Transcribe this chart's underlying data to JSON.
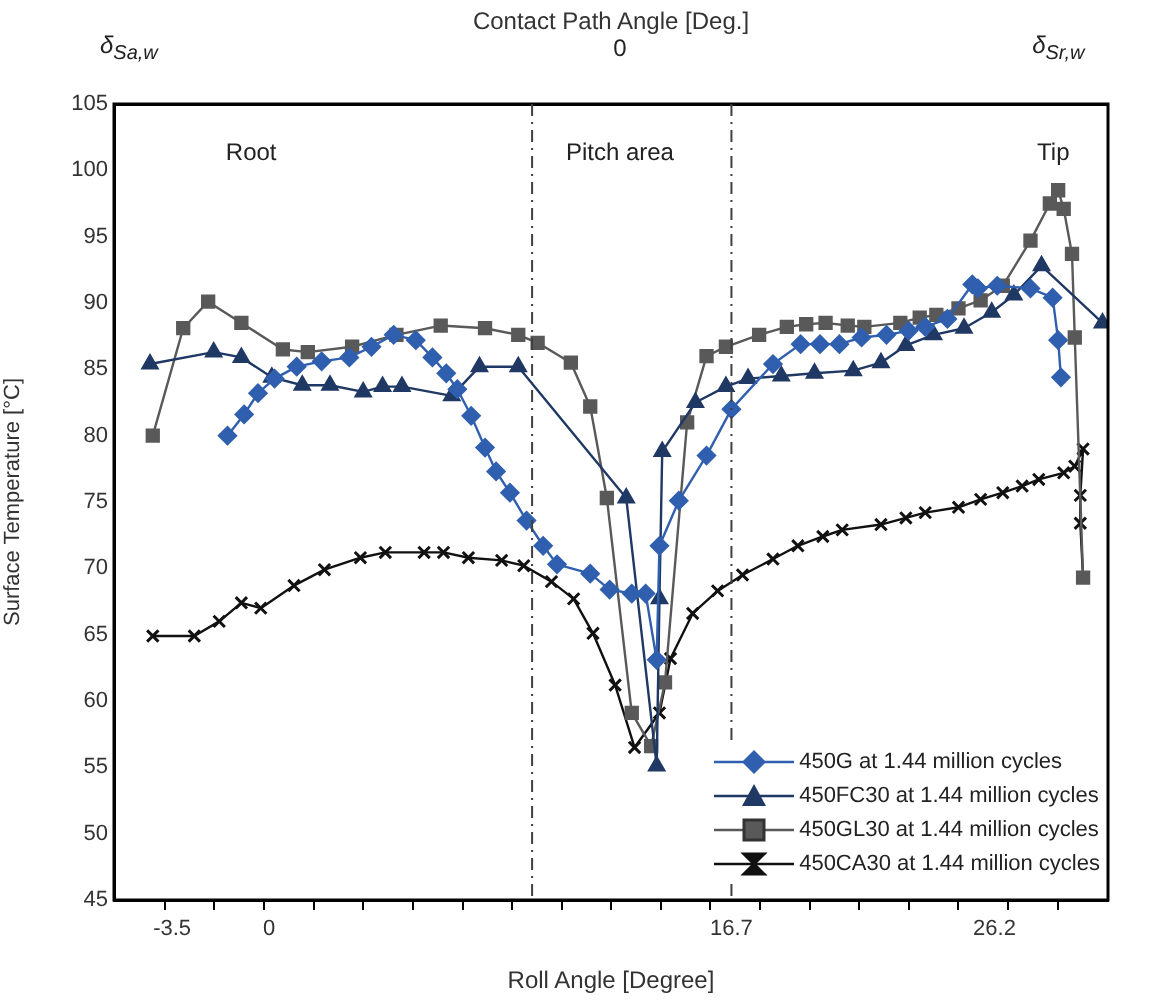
{
  "chart_data": {
    "type": "line",
    "xlabel": "Roll Angle [Degree]",
    "ylabel": "Surface Temperature [°C]",
    "x2label": "Contact Path Angle [Deg.]",
    "xlim": [
      -5.6,
      30.3
    ],
    "ylim": [
      45,
      105
    ],
    "xticks": [
      {
        "value": -3.77,
        "label": null
      },
      -3.5,
      {
        "value": -1.98,
        "label": null
      },
      {
        "value": -0.18,
        "label": null
      },
      0,
      {
        "value": 1.61,
        "label": null
      },
      {
        "value": 3.4,
        "label": null
      },
      {
        "value": 5.19,
        "label": null
      },
      {
        "value": 6.99,
        "label": null
      },
      {
        "value": 8.78,
        "label": null
      },
      {
        "value": 10.57,
        "label": null
      },
      {
        "value": 12.36,
        "label": null
      },
      {
        "value": 14.15,
        "label": null
      },
      {
        "value": 15.94,
        "label": null
      },
      16.7,
      {
        "value": 17.74,
        "label": null
      },
      {
        "value": 19.53,
        "label": null
      },
      {
        "value": 21.32,
        "label": null
      },
      {
        "value": 23.11,
        "label": null
      },
      {
        "value": 24.9,
        "label": null
      },
      26.2,
      {
        "value": 26.7,
        "label": null
      },
      {
        "value": 28.49,
        "label": null
      }
    ],
    "yticks": [
      45,
      50,
      55,
      60,
      65,
      70,
      75,
      80,
      85,
      90,
      95,
      100,
      105
    ],
    "legend": "bottom right",
    "ref_lines": [
      {
        "axis": "x",
        "value": 9.5,
        "color": "#404040",
        "line_style": "dashed"
      },
      {
        "axis": "x",
        "value": 16.7,
        "color": "#404040",
        "line_style": "dashed"
      }
    ],
    "annotations": [
      "Root",
      "Pitch area",
      "Tip",
      "δ$_{Sa,w}$",
      "0",
      "δ$_{Sr,w}$"
    ],
    "series": [
      {
        "name": "450G at 1.44 million cycles",
        "color": "#2f5fae",
        "marker": "diamond",
        "x": [
          -1.5,
          -0.9,
          -0.4,
          0.2,
          1.0,
          1.9,
          2.9,
          3.7,
          4.5,
          5.3,
          5.9,
          6.4,
          6.8,
          7.3,
          7.8,
          8.2,
          8.7,
          9.3,
          9.9,
          10.4,
          11.6,
          12.3,
          13.1,
          13.6,
          14.0,
          14.1,
          14.8,
          15.8,
          16.7,
          18.2,
          19.2,
          19.9,
          20.6,
          21.4,
          22.3,
          23.1,
          23.7,
          24.5,
          25.4,
          25.6,
          26.3,
          27.5,
          28.3,
          28.5,
          28.6
        ],
        "values": [
          80.0,
          81.6,
          83.2,
          84.3,
          85.2,
          85.6,
          85.9,
          86.7,
          87.6,
          87.2,
          85.9,
          84.7,
          83.5,
          81.5,
          79.1,
          77.3,
          75.7,
          73.6,
          71.7,
          70.3,
          69.6,
          68.4,
          68.1,
          68.1,
          63.1,
          71.7,
          75.1,
          78.5,
          82.0,
          85.4,
          86.9,
          86.9,
          86.9,
          87.4,
          87.6,
          87.9,
          88.2,
          88.8,
          91.4,
          91.1,
          91.3,
          91.1,
          90.4,
          87.2,
          84.4
        ]
      },
      {
        "name": "450FC30 at 1.44 million cycles",
        "color": "#1f3864",
        "marker": "triangle",
        "x": [
          -4.3,
          -2.0,
          -1.0,
          0.1,
          1.2,
          2.2,
          3.4,
          4.1,
          4.8,
          6.6,
          7.6,
          9.0,
          12.9,
          14.0,
          14.1,
          14.2,
          15.4,
          16.5,
          17.3,
          18.5,
          19.7,
          21.1,
          22.1,
          23.0,
          24.0,
          25.1,
          26.1,
          26.9,
          27.9,
          30.1
        ],
        "values": [
          85.4,
          86.3,
          85.9,
          84.4,
          83.8,
          83.8,
          83.3,
          83.7,
          83.7,
          83.0,
          85.2,
          85.2,
          75.3,
          55.1,
          67.7,
          78.8,
          82.5,
          83.7,
          84.3,
          84.5,
          84.7,
          84.9,
          85.5,
          86.8,
          87.6,
          88.1,
          89.3,
          90.6,
          92.8,
          88.5
        ]
      },
      {
        "name": "450GL30 at 1.44 million cycles",
        "color": "#595959",
        "marker": "square",
        "x": [
          -4.2,
          -3.1,
          -2.2,
          -1.0,
          0.5,
          1.4,
          3.0,
          4.6,
          6.2,
          7.8,
          9.0,
          9.7,
          10.9,
          11.6,
          12.2,
          13.1,
          13.8,
          14.3,
          15.1,
          15.8,
          16.5,
          17.7,
          18.7,
          19.4,
          20.1,
          20.9,
          21.5,
          22.8,
          23.5,
          24.1,
          24.9,
          25.7,
          26.5,
          27.5,
          28.2,
          28.5,
          28.7,
          29.0,
          29.1,
          29.4
        ],
        "values": [
          80.0,
          88.1,
          90.1,
          88.5,
          86.5,
          86.3,
          86.7,
          87.6,
          88.3,
          88.1,
          87.6,
          87.0,
          85.5,
          82.2,
          75.3,
          59.1,
          56.6,
          61.4,
          81.0,
          86.0,
          86.7,
          87.6,
          88.2,
          88.4,
          88.5,
          88.3,
          88.2,
          88.5,
          88.9,
          89.1,
          89.6,
          90.2,
          91.3,
          94.7,
          97.5,
          98.5,
          97.1,
          93.7,
          87.4,
          69.3
        ]
      },
      {
        "name": "450CA30 at 1.44 million cycles",
        "color": "#111111",
        "marker": "cross",
        "x": [
          -4.2,
          -2.7,
          -1.8,
          -1.0,
          -0.3,
          0.9,
          2.0,
          3.3,
          4.2,
          5.6,
          6.3,
          7.2,
          8.4,
          9.2,
          10.2,
          11.0,
          11.7,
          12.5,
          13.2,
          14.1,
          14.5,
          15.3,
          16.2,
          17.1,
          18.2,
          19.1,
          20.0,
          20.7,
          22.1,
          23.0,
          23.7,
          24.9,
          25.7,
          26.5,
          27.2,
          27.8,
          28.7,
          29.1,
          29.4,
          29.3,
          29.3,
          29.4
        ],
        "values": [
          64.9,
          64.9,
          66.0,
          67.4,
          67.0,
          68.7,
          69.9,
          70.8,
          71.2,
          71.2,
          71.2,
          70.8,
          70.6,
          70.2,
          69.0,
          67.7,
          65.1,
          61.2,
          56.5,
          59.1,
          63.2,
          66.6,
          68.3,
          69.5,
          70.7,
          71.7,
          72.4,
          72.9,
          73.3,
          73.8,
          74.2,
          74.6,
          75.2,
          75.7,
          76.2,
          76.7,
          77.2,
          77.7,
          79.0,
          75.5,
          73.4,
          69.3
        ]
      }
    ]
  }
}
